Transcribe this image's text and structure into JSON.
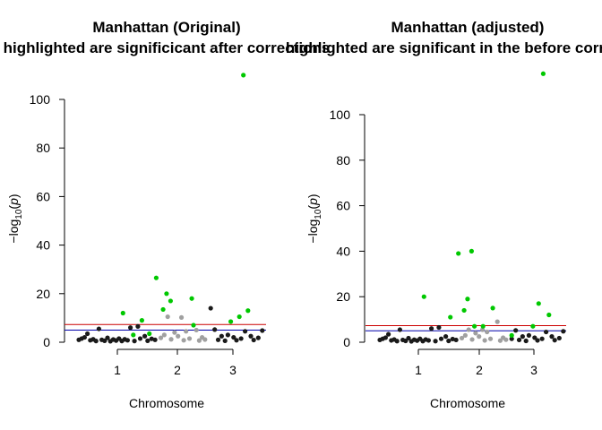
{
  "colors": {
    "highlight": "#00c800",
    "chrom_odd": "#1a1a1a",
    "chrom_even": "#a0a0a0",
    "suggestive_line": "#0000aa",
    "genomewide_line": "#cc0000",
    "axis": "#000000"
  },
  "chart_data": [
    {
      "type": "scatter",
      "title": "Manhattan (Original)",
      "subtitle": "highlighted are significicant after corrections",
      "xlabel": "Chromosome",
      "ylabel": "-log10(p)",
      "x_ticks": [
        "1",
        "2",
        "3"
      ],
      "y_ticks": [
        0,
        20,
        40,
        60,
        80,
        100
      ],
      "ylim": [
        0,
        100
      ],
      "xlim": [
        0,
        3.5
      ],
      "suggestive_threshold": 5,
      "genomewide_threshold": 7.3,
      "highlighted_points": [
        {
          "x": 1.02,
          "y": 12
        },
        {
          "x": 1.2,
          "y": 3
        },
        {
          "x": 1.35,
          "y": 9
        },
        {
          "x": 1.48,
          "y": 3.5
        },
        {
          "x": 1.6,
          "y": 26.5
        },
        {
          "x": 1.72,
          "y": 13.5
        },
        {
          "x": 1.78,
          "y": 20
        },
        {
          "x": 1.85,
          "y": 17
        },
        {
          "x": 2.22,
          "y": 18
        },
        {
          "x": 2.25,
          "y": 7
        },
        {
          "x": 2.9,
          "y": 8.5
        },
        {
          "x": 3.05,
          "y": 10.5
        },
        {
          "x": 3.12,
          "y": 110
        },
        {
          "x": 3.2,
          "y": 13
        }
      ],
      "background_points": [
        {
          "x": 0.25,
          "y": 1,
          "chrom": 1
        },
        {
          "x": 0.3,
          "y": 1.5,
          "chrom": 1
        },
        {
          "x": 0.35,
          "y": 2,
          "chrom": 1
        },
        {
          "x": 0.4,
          "y": 3.5,
          "chrom": 1
        },
        {
          "x": 0.45,
          "y": 0.8,
          "chrom": 1
        },
        {
          "x": 0.5,
          "y": 1.2,
          "chrom": 1
        },
        {
          "x": 0.55,
          "y": 0.5,
          "chrom": 1
        },
        {
          "x": 0.6,
          "y": 5.5,
          "chrom": 1
        },
        {
          "x": 0.65,
          "y": 1,
          "chrom": 1
        },
        {
          "x": 0.7,
          "y": 0.6,
          "chrom": 1
        },
        {
          "x": 0.75,
          "y": 1.8,
          "chrom": 1
        },
        {
          "x": 0.8,
          "y": 0.4,
          "chrom": 1
        },
        {
          "x": 0.85,
          "y": 1.1,
          "chrom": 1
        },
        {
          "x": 0.9,
          "y": 0.7,
          "chrom": 1
        },
        {
          "x": 0.95,
          "y": 1.5,
          "chrom": 1
        },
        {
          "x": 1.0,
          "y": 0.5,
          "chrom": 1
        },
        {
          "x": 1.05,
          "y": 1.2,
          "chrom": 1
        },
        {
          "x": 1.1,
          "y": 0.8,
          "chrom": 1
        },
        {
          "x": 1.15,
          "y": 6,
          "chrom": 1
        },
        {
          "x": 1.22,
          "y": 0.5,
          "chrom": 1
        },
        {
          "x": 1.28,
          "y": 6.5,
          "chrom": 1
        },
        {
          "x": 1.32,
          "y": 1.5,
          "chrom": 1
        },
        {
          "x": 1.4,
          "y": 2.5,
          "chrom": 1
        },
        {
          "x": 1.45,
          "y": 0.6,
          "chrom": 1
        },
        {
          "x": 1.52,
          "y": 1.4,
          "chrom": 1
        },
        {
          "x": 1.58,
          "y": 1,
          "chrom": 1
        },
        {
          "x": 1.68,
          "y": 1.8,
          "chrom": 2
        },
        {
          "x": 1.74,
          "y": 3,
          "chrom": 2
        },
        {
          "x": 1.8,
          "y": 10.5,
          "chrom": 2
        },
        {
          "x": 1.86,
          "y": 1.2,
          "chrom": 2
        },
        {
          "x": 1.92,
          "y": 4,
          "chrom": 2
        },
        {
          "x": 1.98,
          "y": 2.5,
          "chrom": 2
        },
        {
          "x": 2.04,
          "y": 10.2,
          "chrom": 2
        },
        {
          "x": 2.08,
          "y": 0.8,
          "chrom": 2
        },
        {
          "x": 2.12,
          "y": 4.5,
          "chrom": 2
        },
        {
          "x": 2.18,
          "y": 1.5,
          "chrom": 2
        },
        {
          "x": 2.3,
          "y": 5,
          "chrom": 2
        },
        {
          "x": 2.35,
          "y": 0.7,
          "chrom": 2
        },
        {
          "x": 2.4,
          "y": 2,
          "chrom": 2
        },
        {
          "x": 2.45,
          "y": 1.1,
          "chrom": 2
        },
        {
          "x": 2.55,
          "y": 14,
          "chrom": 3
        },
        {
          "x": 2.62,
          "y": 5.2,
          "chrom": 3
        },
        {
          "x": 2.68,
          "y": 1,
          "chrom": 3
        },
        {
          "x": 2.74,
          "y": 2.5,
          "chrom": 3
        },
        {
          "x": 2.8,
          "y": 0.6,
          "chrom": 3
        },
        {
          "x": 2.85,
          "y": 3,
          "chrom": 3
        },
        {
          "x": 2.95,
          "y": 2,
          "chrom": 3
        },
        {
          "x": 3.0,
          "y": 0.8,
          "chrom": 3
        },
        {
          "x": 3.08,
          "y": 1.5,
          "chrom": 3
        },
        {
          "x": 3.15,
          "y": 4.5,
          "chrom": 3
        },
        {
          "x": 3.25,
          "y": 2.5,
          "chrom": 3
        },
        {
          "x": 3.3,
          "y": 0.9,
          "chrom": 3
        },
        {
          "x": 3.38,
          "y": 1.8,
          "chrom": 3
        },
        {
          "x": 3.45,
          "y": 4.8,
          "chrom": 3
        }
      ]
    },
    {
      "type": "scatter",
      "title": "Manhattan (adjusted)",
      "subtitle": "highlighted are significant in the before correction",
      "xlabel": "Chromosome",
      "ylabel": "-log10(p)",
      "x_ticks": [
        "1",
        "2",
        "3"
      ],
      "y_ticks": [
        0,
        20,
        40,
        60,
        80,
        100
      ],
      "ylim": [
        0,
        100
      ],
      "xlim": [
        0,
        3.5
      ],
      "suggestive_threshold": 5,
      "genomewide_threshold": 7.3,
      "highlighted_points": [
        {
          "x": 1.02,
          "y": 20
        },
        {
          "x": 1.48,
          "y": 11
        },
        {
          "x": 1.62,
          "y": 39
        },
        {
          "x": 1.72,
          "y": 14
        },
        {
          "x": 1.78,
          "y": 19
        },
        {
          "x": 1.85,
          "y": 40
        },
        {
          "x": 1.9,
          "y": 7
        },
        {
          "x": 2.05,
          "y": 7
        },
        {
          "x": 2.22,
          "y": 15
        },
        {
          "x": 2.55,
          "y": 3
        },
        {
          "x": 2.92,
          "y": 7
        },
        {
          "x": 3.02,
          "y": 17
        },
        {
          "x": 3.1,
          "y": 118
        },
        {
          "x": 3.2,
          "y": 12
        }
      ],
      "background_points": [
        {
          "x": 0.25,
          "y": 1,
          "chrom": 1
        },
        {
          "x": 0.3,
          "y": 1.5,
          "chrom": 1
        },
        {
          "x": 0.35,
          "y": 2,
          "chrom": 1
        },
        {
          "x": 0.4,
          "y": 3.5,
          "chrom": 1
        },
        {
          "x": 0.45,
          "y": 0.8,
          "chrom": 1
        },
        {
          "x": 0.5,
          "y": 1.2,
          "chrom": 1
        },
        {
          "x": 0.55,
          "y": 0.5,
          "chrom": 1
        },
        {
          "x": 0.6,
          "y": 5.5,
          "chrom": 1
        },
        {
          "x": 0.65,
          "y": 1,
          "chrom": 1
        },
        {
          "x": 0.7,
          "y": 0.6,
          "chrom": 1
        },
        {
          "x": 0.75,
          "y": 1.8,
          "chrom": 1
        },
        {
          "x": 0.8,
          "y": 0.4,
          "chrom": 1
        },
        {
          "x": 0.85,
          "y": 1.1,
          "chrom": 1
        },
        {
          "x": 0.9,
          "y": 0.7,
          "chrom": 1
        },
        {
          "x": 0.95,
          "y": 1.5,
          "chrom": 1
        },
        {
          "x": 1.0,
          "y": 0.5,
          "chrom": 1
        },
        {
          "x": 1.05,
          "y": 1.2,
          "chrom": 1
        },
        {
          "x": 1.1,
          "y": 0.8,
          "chrom": 1
        },
        {
          "x": 1.15,
          "y": 6,
          "chrom": 1
        },
        {
          "x": 1.22,
          "y": 0.5,
          "chrom": 1
        },
        {
          "x": 1.28,
          "y": 6.5,
          "chrom": 1
        },
        {
          "x": 1.32,
          "y": 1.5,
          "chrom": 1
        },
        {
          "x": 1.4,
          "y": 2.5,
          "chrom": 1
        },
        {
          "x": 1.45,
          "y": 0.6,
          "chrom": 1
        },
        {
          "x": 1.52,
          "y": 1.4,
          "chrom": 1
        },
        {
          "x": 1.58,
          "y": 1,
          "chrom": 1
        },
        {
          "x": 1.68,
          "y": 1.8,
          "chrom": 2
        },
        {
          "x": 1.74,
          "y": 3,
          "chrom": 2
        },
        {
          "x": 1.8,
          "y": 5.5,
          "chrom": 2
        },
        {
          "x": 1.86,
          "y": 1.2,
          "chrom": 2
        },
        {
          "x": 1.92,
          "y": 4,
          "chrom": 2
        },
        {
          "x": 1.98,
          "y": 2.5,
          "chrom": 2
        },
        {
          "x": 2.04,
          "y": 5.5,
          "chrom": 2
        },
        {
          "x": 2.08,
          "y": 0.8,
          "chrom": 2
        },
        {
          "x": 2.12,
          "y": 4.5,
          "chrom": 2
        },
        {
          "x": 2.18,
          "y": 1.5,
          "chrom": 2
        },
        {
          "x": 2.3,
          "y": 9,
          "chrom": 2
        },
        {
          "x": 2.35,
          "y": 0.7,
          "chrom": 2
        },
        {
          "x": 2.4,
          "y": 2,
          "chrom": 2
        },
        {
          "x": 2.45,
          "y": 1.1,
          "chrom": 2
        },
        {
          "x": 2.55,
          "y": 1.5,
          "chrom": 3
        },
        {
          "x": 2.62,
          "y": 5.2,
          "chrom": 3
        },
        {
          "x": 2.68,
          "y": 1,
          "chrom": 3
        },
        {
          "x": 2.74,
          "y": 2.5,
          "chrom": 3
        },
        {
          "x": 2.8,
          "y": 0.6,
          "chrom": 3
        },
        {
          "x": 2.85,
          "y": 3,
          "chrom": 3
        },
        {
          "x": 2.95,
          "y": 2,
          "chrom": 3
        },
        {
          "x": 3.0,
          "y": 0.8,
          "chrom": 3
        },
        {
          "x": 3.08,
          "y": 1.5,
          "chrom": 3
        },
        {
          "x": 3.15,
          "y": 4.5,
          "chrom": 3
        },
        {
          "x": 3.25,
          "y": 2.5,
          "chrom": 3
        },
        {
          "x": 3.3,
          "y": 0.9,
          "chrom": 3
        },
        {
          "x": 3.38,
          "y": 1.8,
          "chrom": 3
        },
        {
          "x": 3.45,
          "y": 4.8,
          "chrom": 3
        }
      ]
    }
  ]
}
